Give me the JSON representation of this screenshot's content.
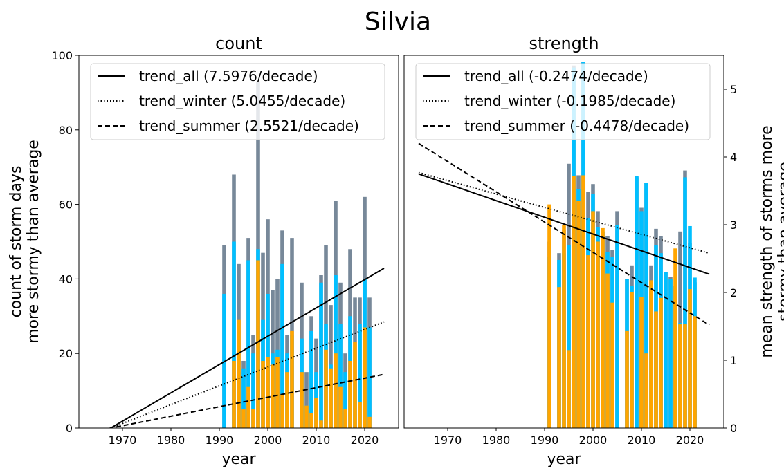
{
  "figure": {
    "title": "Silvia"
  },
  "colors": {
    "all": "#778899",
    "winter": "#00bfff",
    "summer": "#ffa500",
    "trend": "#000000"
  },
  "chart_data": [
    {
      "type": "bar",
      "title": "count",
      "xlabel": "year",
      "ylabel_lines": [
        "count of storm days",
        "more stormy than average"
      ],
      "xlim": [
        1961,
        2027
      ],
      "ylim": [
        0,
        100
      ],
      "xticks": [
        1970,
        1980,
        1990,
        2000,
        2010,
        2020
      ],
      "yticks": [
        0,
        20,
        40,
        60,
        80,
        100
      ],
      "y_axis_side": "left",
      "legend_position": "top-left",
      "grid": false,
      "categories": [
        1991,
        1992,
        1993,
        1994,
        1995,
        1996,
        1997,
        1998,
        1999,
        2000,
        2001,
        2002,
        2003,
        2004,
        2005,
        2006,
        2007,
        2008,
        2009,
        2010,
        2011,
        2012,
        2013,
        2014,
        2015,
        2016,
        2017,
        2018,
        2019,
        2020,
        2021
      ],
      "series": [
        {
          "key": "all",
          "values": [
            49,
            0,
            68,
            44,
            18,
            51,
            25,
            93,
            47,
            56,
            37,
            40,
            53,
            25,
            51,
            0,
            39,
            15,
            30,
            24,
            41,
            49,
            33,
            61,
            39,
            20,
            48,
            35,
            35,
            62,
            35
          ]
        },
        {
          "key": "winter",
          "values": [
            36,
            0,
            50,
            15,
            16,
            45,
            20,
            48,
            29,
            36,
            20,
            21,
            44,
            20,
            25,
            0,
            24,
            6,
            26,
            15,
            39,
            28,
            17,
            41,
            28,
            15,
            30,
            12,
            28,
            40,
            27
          ]
        },
        {
          "key": "summer",
          "values": [
            0,
            0,
            18,
            29,
            5,
            11,
            5,
            45,
            18,
            19,
            17,
            19,
            9,
            15,
            26,
            0,
            15,
            6,
            4,
            8,
            2,
            21,
            16,
            20,
            11,
            5,
            18,
            23,
            7,
            27,
            3
          ]
        }
      ],
      "trends": [
        {
          "key": "all",
          "label": "trend_all (7.5976/decade)",
          "style": "solid",
          "x": [
            1961,
            2024
          ],
          "y": [
            -5.0,
            42.86
          ]
        },
        {
          "key": "winter",
          "label": "trend_winter (5.0455/decade)",
          "style": "dotted",
          "x": [
            1961,
            2024
          ],
          "y": [
            -3.32,
            28.47
          ]
        },
        {
          "key": "summer",
          "label": "trend_summer (2.5521/decade)",
          "style": "dashed",
          "x": [
            1961,
            2024
          ],
          "y": [
            -1.68,
            14.39
          ]
        }
      ]
    },
    {
      "type": "bar",
      "title": "strength",
      "xlabel": "year",
      "ylabel_lines": [
        "mean strength of storms more",
        "stormy than average"
      ],
      "xlim": [
        1961,
        2027
      ],
      "ylim": [
        0,
        5.5
      ],
      "xticks": [
        1970,
        1980,
        1990,
        2000,
        2010,
        2020
      ],
      "yticks": [
        0,
        1,
        2,
        3,
        4,
        5
      ],
      "y_axis_side": "right",
      "legend_position": "top-left",
      "grid": false,
      "categories": [
        1991,
        1992,
        1993,
        1994,
        1995,
        1996,
        1997,
        1998,
        1999,
        2000,
        2001,
        2002,
        2003,
        2004,
        2005,
        2006,
        2007,
        2008,
        2009,
        2010,
        2011,
        2012,
        2013,
        2014,
        2015,
        2016,
        2017,
        2018,
        2019,
        2020,
        2021
      ],
      "series": [
        {
          "key": "all",
          "values": [
            2.75,
            0,
            2.58,
            2.93,
            3.9,
            5.35,
            3.73,
            5.4,
            3.48,
            3.6,
            3.2,
            2.9,
            2.83,
            2.63,
            3.2,
            0,
            2.2,
            2.4,
            3.7,
            3.25,
            3.62,
            2.4,
            2.94,
            2.83,
            2.3,
            2.23,
            2.1,
            2.9,
            3.8,
            2.73,
            2.15
          ]
        },
        {
          "key": "winter",
          "values": [
            2.53,
            0,
            2.48,
            2.58,
            2.7,
            5.32,
            3.53,
            5.4,
            3.1,
            3.45,
            2.96,
            2.9,
            2.6,
            2.53,
            3.0,
            0,
            2.2,
            2.1,
            3.72,
            3.2,
            3.62,
            2.1,
            2.7,
            2.58,
            2.3,
            2.2,
            2.1,
            1.55,
            3.7,
            2.98,
            2.22
          ]
        },
        {
          "key": "summer",
          "values": [
            3.3,
            0,
            2.08,
            3.0,
            1.15,
            3.72,
            3.35,
            3.73,
            2.55,
            3.2,
            2.75,
            2.95,
            2.28,
            1.85,
            0,
            0,
            1.43,
            2.0,
            0,
            1.93,
            1.1,
            2.18,
            1.72,
            1.92,
            0,
            0,
            2.65,
            1.53,
            1.53,
            2.05,
            1.65
          ]
        }
      ],
      "trends": [
        {
          "key": "all",
          "label": "trend_all (-0.2474/decade)",
          "style": "solid",
          "x": [
            1964,
            2024
          ],
          "y": [
            3.75,
            2.27
          ]
        },
        {
          "key": "winter",
          "label": "trend_winter (-0.1985/decade)",
          "style": "dotted",
          "x": [
            1964,
            2024
          ],
          "y": [
            3.77,
            2.58
          ]
        },
        {
          "key": "summer",
          "label": "trend_summer (-0.4478/decade)",
          "style": "dashed",
          "x": [
            1964,
            2024
          ],
          "y": [
            4.2,
            1.52
          ]
        }
      ]
    }
  ]
}
